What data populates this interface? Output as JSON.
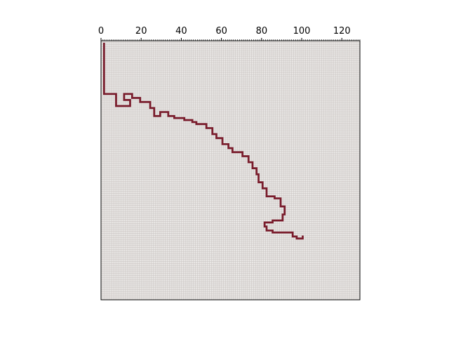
{
  "chart_data": {
    "type": "heatmap",
    "title": "",
    "xlabel": "",
    "ylabel": "",
    "xlim": [
      0,
      129
    ],
    "ylim": [
      129,
      0
    ],
    "x_axis_position": "top",
    "y_axis_visible": false,
    "grid": true,
    "x_ticks": [
      0,
      20,
      40,
      60,
      80,
      100,
      120
    ],
    "x_tick_labels": [
      "0",
      "20",
      "40",
      "60",
      "80",
      "100",
      "120"
    ],
    "colors": {
      "background": "#ffffff",
      "cell_fill": "#e8e6e4",
      "grid_line": "#c9c3c1",
      "path": "#7a1c2c",
      "axis": "#000000"
    },
    "path_vertices": [
      [
        1,
        1
      ],
      [
        1,
        26
      ],
      [
        7,
        26
      ],
      [
        7,
        32
      ],
      [
        14,
        32
      ],
      [
        14,
        29
      ],
      [
        11,
        29
      ],
      [
        11,
        26
      ],
      [
        15,
        26
      ],
      [
        15,
        28
      ],
      [
        19,
        28
      ],
      [
        19,
        30
      ],
      [
        24,
        30
      ],
      [
        24,
        33
      ],
      [
        26,
        33
      ],
      [
        26,
        37
      ],
      [
        29,
        37
      ],
      [
        29,
        35
      ],
      [
        33,
        35
      ],
      [
        33,
        37
      ],
      [
        36,
        37
      ],
      [
        36,
        38
      ],
      [
        41,
        38
      ],
      [
        41,
        39
      ],
      [
        45,
        39
      ],
      [
        45,
        40
      ],
      [
        47,
        40
      ],
      [
        47,
        41
      ],
      [
        52,
        41
      ],
      [
        52,
        43
      ],
      [
        55,
        43
      ],
      [
        55,
        46
      ],
      [
        57,
        46
      ],
      [
        57,
        48
      ],
      [
        60,
        48
      ],
      [
        60,
        51
      ],
      [
        63,
        51
      ],
      [
        63,
        53
      ],
      [
        65,
        53
      ],
      [
        65,
        55
      ],
      [
        70,
        55
      ],
      [
        70,
        57
      ],
      [
        73,
        57
      ],
      [
        73,
        60
      ],
      [
        75,
        60
      ],
      [
        75,
        63
      ],
      [
        77,
        63
      ],
      [
        77,
        66
      ],
      [
        78,
        66
      ],
      [
        78,
        70
      ],
      [
        80,
        70
      ],
      [
        80,
        73
      ],
      [
        82,
        73
      ],
      [
        82,
        77
      ],
      [
        86,
        77
      ],
      [
        86,
        78
      ],
      [
        89,
        78
      ],
      [
        89,
        82
      ],
      [
        91,
        82
      ],
      [
        91,
        86
      ],
      [
        90,
        86
      ],
      [
        90,
        89
      ],
      [
        85,
        89
      ],
      [
        85,
        90
      ],
      [
        81,
        90
      ],
      [
        81,
        92
      ],
      [
        82,
        92
      ],
      [
        82,
        94
      ],
      [
        85,
        94
      ],
      [
        85,
        95
      ],
      [
        95,
        95
      ],
      [
        95,
        97
      ],
      [
        97,
        97
      ],
      [
        97,
        98
      ],
      [
        100,
        98
      ],
      [
        100,
        97
      ]
    ]
  }
}
